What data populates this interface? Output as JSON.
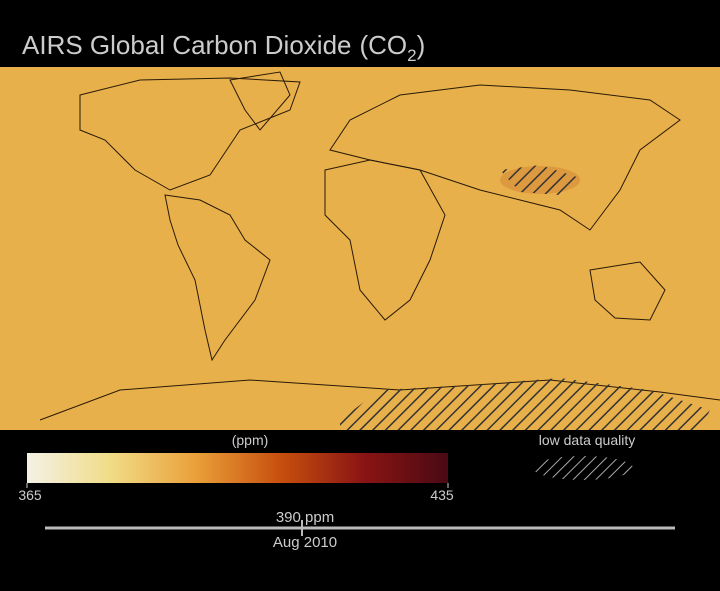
{
  "header": {
    "title": "AIRS Global Carbon Dioxide",
    "formula": "(CO",
    "subscript": "2",
    "formula_close": ")"
  },
  "legend": {
    "unit": "(ppm)",
    "min": 365,
    "max": 435,
    "colors": [
      "#f4f1e6",
      "#f0dc86",
      "#eaa03a",
      "#c8500e",
      "#8a1414",
      "#4a0a14"
    ],
    "hatch_label": "low data quality"
  },
  "timeline": {
    "value_label": "390 ppm",
    "date": "Aug 2010"
  }
}
